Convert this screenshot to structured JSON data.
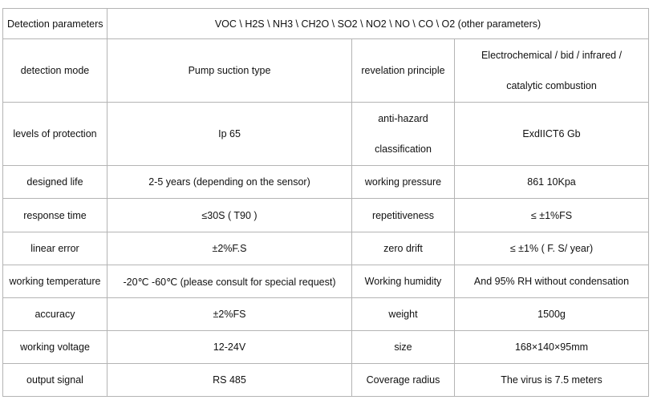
{
  "table": {
    "rows": [
      [
        "Detection parameters",
        "VOC \\ H2S \\ NH3 \\ CH2O \\ SO2 \\ NO2 \\ NO \\ CO \\ O2 (other parameters)"
      ],
      [
        "detection mode",
        "Pump suction type",
        "revelation principle",
        [
          "Electrochemical / bid / infrared /",
          "catalytic combustion"
        ]
      ],
      [
        "levels of protection",
        "Ip 65",
        [
          "anti-hazard",
          "classification"
        ],
        "ExdIICT6 Gb"
      ],
      [
        "designed life",
        "2-5 years (depending on the sensor)",
        "working pressure",
        "861 10Kpa"
      ],
      [
        "response time",
        "≤30S ( T90 )",
        "repetitiveness",
        "≤  ±1%FS"
      ],
      [
        "linear error",
        "±2%F.S",
        "zero drift",
        "≤  ±1% ( F. S/ year)"
      ],
      [
        "working temperature",
        "-20℃ -60℃ (please consult for special request)",
        "Working humidity",
        "And 95% RH without condensation"
      ],
      [
        "accuracy",
        "±2%FS",
        "weight",
        "1500g"
      ],
      [
        "working voltage",
        "12-24V",
        "size",
        "168×140×95mm"
      ],
      [
        "output signal",
        "RS 485",
        "Coverage radius",
        "The virus is 7.5 meters"
      ]
    ]
  }
}
